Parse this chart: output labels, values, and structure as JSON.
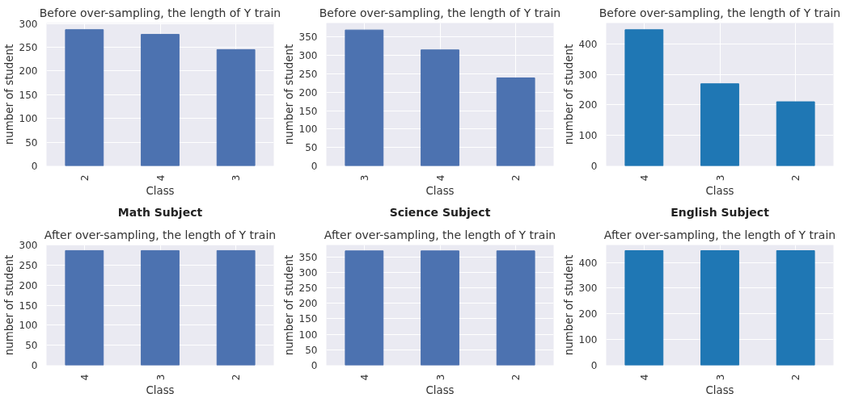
{
  "chart_data": [
    {
      "type": "bar",
      "title": "Before over-sampling, the length of Y train",
      "xlabel": "Class",
      "ylabel": "number of student",
      "categories": [
        "2",
        "4",
        "3"
      ],
      "values": [
        287,
        277,
        245
      ],
      "color": "#4c72b0",
      "ylim": [
        0,
        301
      ],
      "yticks": [
        0,
        50,
        100,
        150,
        200,
        250,
        300
      ],
      "grid": true
    },
    {
      "type": "bar",
      "title": "Before over-sampling, the length of Y train",
      "xlabel": "Class",
      "ylabel": "number of student",
      "categories": [
        "3",
        "4",
        "2"
      ],
      "values": [
        369,
        315,
        239
      ],
      "color": "#4c72b0",
      "ylim": [
        0,
        388
      ],
      "yticks": [
        0,
        50,
        100,
        150,
        200,
        250,
        300,
        350
      ],
      "grid": true
    },
    {
      "type": "bar",
      "title": "Before over-sampling, the length of Y train",
      "xlabel": "Class",
      "ylabel": "number of student",
      "categories": [
        "4",
        "3",
        "2"
      ],
      "values": [
        446,
        269,
        210
      ],
      "color": "#1f77b4",
      "ylim": [
        0,
        468
      ],
      "yticks": [
        0,
        100,
        200,
        300,
        400
      ],
      "grid": true
    },
    {
      "type": "bar",
      "title": "Math Subject",
      "subtitle": "After over-sampling, the length of Y train",
      "xlabel": "Class",
      "ylabel": "number of student",
      "categories": [
        "4",
        "3",
        "2"
      ],
      "values": [
        287,
        287,
        287
      ],
      "color": "#4c72b0",
      "ylim": [
        0,
        301
      ],
      "yticks": [
        0,
        50,
        100,
        150,
        200,
        250,
        300
      ],
      "grid": true
    },
    {
      "type": "bar",
      "title": "Science Subject",
      "subtitle": "After over-sampling, the length of Y train",
      "xlabel": "Class",
      "ylabel": "number of student",
      "categories": [
        "4",
        "3",
        "2"
      ],
      "values": [
        369,
        369,
        369
      ],
      "color": "#4c72b0",
      "ylim": [
        0,
        388
      ],
      "yticks": [
        0,
        50,
        100,
        150,
        200,
        250,
        300,
        350
      ],
      "grid": true
    },
    {
      "type": "bar",
      "title": "English Subject",
      "subtitle": "After over-sampling, the length of Y train",
      "xlabel": "Class",
      "ylabel": "number of student",
      "categories": [
        "4",
        "3",
        "2"
      ],
      "values": [
        446,
        446,
        446
      ],
      "color": "#1f77b4",
      "ylim": [
        0,
        468
      ],
      "yticks": [
        0,
        100,
        200,
        300,
        400
      ],
      "grid": true
    }
  ]
}
